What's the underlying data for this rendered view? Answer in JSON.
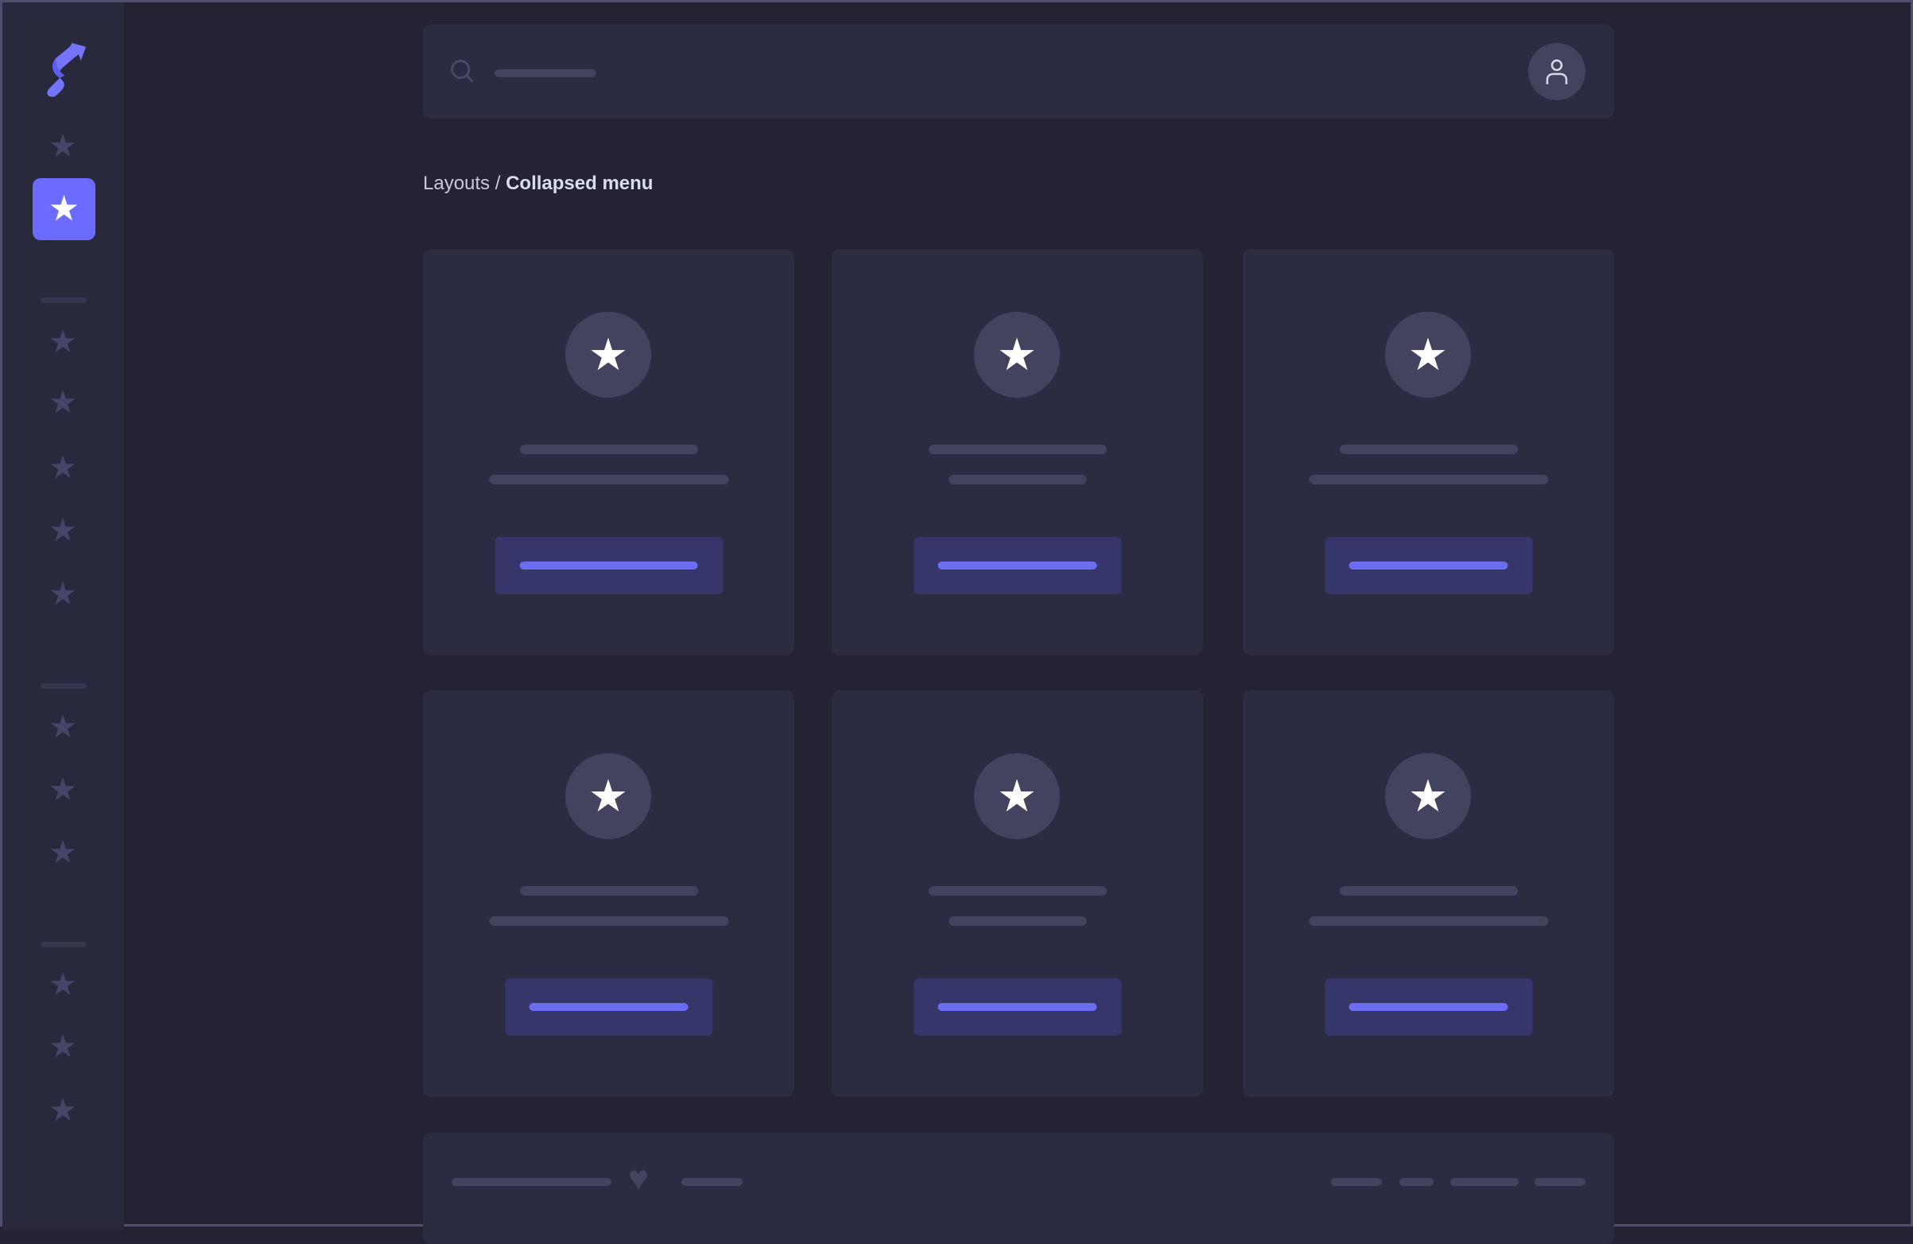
{
  "breadcrumb": {
    "parent": "Layouts",
    "separator": " / ",
    "current": "Collapsed menu"
  },
  "colors": {
    "accent": "#6b6bff",
    "background": "#232333",
    "sidebar": "#29293d",
    "card": "#2b2b41",
    "placeholder": "#43435f"
  },
  "sidebar": {
    "logo": "s-arrow-logo",
    "items": [
      "star-icon",
      "star-icon-active",
      "star-icon",
      "star-icon",
      "star-icon",
      "star-icon",
      "star-icon",
      "star-icon",
      "star-icon",
      "star-icon",
      "star-icon",
      "star-icon",
      "star-icon"
    ]
  },
  "icons": {
    "star": "★",
    "heart": "♥"
  },
  "cards_count": 6
}
